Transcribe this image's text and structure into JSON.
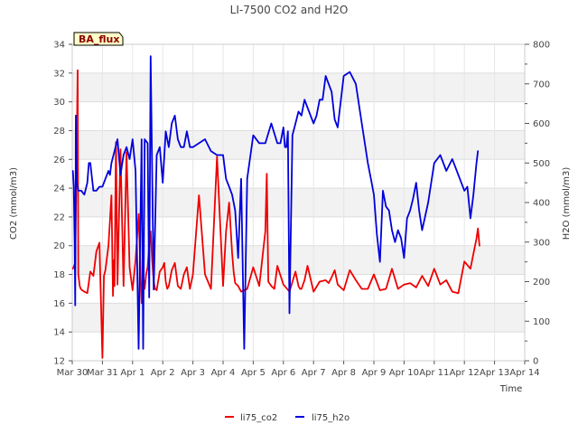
{
  "chart_data": {
    "type": "line",
    "title": "LI-7500 CO2 and H2O",
    "badge": "BA_flux",
    "xlabel": "Time",
    "ylabel_left": "CO2 (mmol/m3)",
    "ylabel_right": "H2O (mmol/m3)",
    "x_tick_labels": [
      "Mar 30",
      "Mar 31",
      "Apr 1",
      "Apr 2",
      "Apr 3",
      "Apr 4",
      "Apr 5",
      "Apr 6",
      "Apr 7",
      "Apr 8",
      "Apr 9",
      "Apr 10",
      "Apr 11",
      "Apr 12",
      "Apr 13",
      "Apr 14"
    ],
    "xlim": [
      0,
      15
    ],
    "ylim_left": [
      12,
      34
    ],
    "ylim_right": [
      0,
      800
    ],
    "yticks_left": [
      12,
      14,
      16,
      18,
      20,
      22,
      24,
      26,
      28,
      30,
      32,
      34
    ],
    "yticks_right": [
      0,
      100,
      200,
      300,
      400,
      500,
      600,
      700,
      800
    ],
    "series": [
      {
        "name": "li75_co2",
        "axis": "left",
        "color": "#ee0000",
        "x": [
          0.02,
          0.1,
          0.18,
          0.2,
          0.25,
          0.28,
          0.33,
          0.4,
          0.5,
          0.6,
          0.7,
          0.8,
          0.9,
          1.0,
          1.05,
          1.1,
          1.2,
          1.3,
          1.35,
          1.38,
          1.4,
          1.45,
          1.5,
          1.6,
          1.7,
          1.8,
          1.9,
          2.0,
          2.1,
          2.2,
          2.3,
          2.35,
          2.4,
          2.45,
          2.5,
          2.55,
          2.6,
          2.65,
          2.7,
          2.75,
          2.8,
          2.9,
          3.0,
          3.05,
          3.1,
          3.15,
          3.2,
          3.3,
          3.4,
          3.5,
          3.6,
          3.7,
          3.8,
          3.9,
          4.0,
          4.2,
          4.4,
          4.6,
          4.8,
          5.0,
          5.1,
          5.2,
          5.3,
          5.35,
          5.4,
          5.5,
          5.6,
          5.8,
          6.0,
          6.2,
          6.4,
          6.45,
          6.5,
          6.6,
          6.7,
          6.8,
          7.0,
          7.2,
          7.4,
          7.5,
          7.55,
          7.6,
          7.7,
          7.8,
          8.0,
          8.2,
          8.4,
          8.5,
          8.6,
          8.7,
          8.8,
          9.0,
          9.2,
          9.4,
          9.6,
          9.8,
          10.0,
          10.2,
          10.4,
          10.6,
          10.8,
          11.0,
          11.2,
          11.4,
          11.6,
          11.8,
          12.0,
          12.2,
          12.4,
          12.6,
          12.8,
          13.0,
          13.2,
          13.4,
          13.45,
          13.5
        ],
        "values": [
          18.4,
          18.8,
          32.2,
          18.0,
          17.2,
          17.0,
          16.9,
          16.8,
          16.7,
          18.2,
          17.9,
          19.6,
          20.2,
          12.2,
          17.9,
          18.3,
          20.0,
          23.5,
          16.5,
          19.0,
          17.2,
          27.2,
          17.3,
          26.7,
          17.2,
          26.5,
          18.5,
          16.9,
          19.0,
          22.2,
          16.0,
          18.0,
          17.0,
          18.0,
          18.5,
          20.0,
          21.0,
          19.0,
          17.5,
          17.0,
          16.9,
          18.2,
          18.5,
          18.8,
          17.5,
          17.0,
          17.2,
          18.3,
          18.8,
          17.2,
          17.0,
          18.0,
          18.5,
          17.0,
          18.0,
          23.5,
          18.0,
          17.0,
          26.2,
          17.2,
          21.0,
          23.0,
          19.5,
          18.2,
          17.4,
          17.2,
          16.8,
          17.0,
          18.5,
          17.2,
          21.0,
          25.0,
          17.5,
          17.2,
          17.0,
          18.6,
          17.3,
          16.8,
          18.2,
          17.2,
          17.0,
          17.0,
          17.6,
          18.6,
          16.8,
          17.5,
          17.6,
          17.4,
          17.8,
          18.3,
          17.3,
          16.9,
          18.3,
          17.6,
          17.0,
          17.0,
          18.0,
          16.9,
          17.0,
          18.4,
          17.0,
          17.3,
          17.4,
          17.1,
          17.9,
          17.2,
          18.4,
          17.3,
          17.6,
          16.8,
          16.7,
          18.9,
          18.4,
          20.5,
          21.2,
          20.0
        ]
      },
      {
        "name": "li75_h2o",
        "axis": "right",
        "color": "#0000dd",
        "x": [
          0.02,
          0.05,
          0.08,
          0.1,
          0.12,
          0.15,
          0.2,
          0.3,
          0.4,
          0.5,
          0.55,
          0.6,
          0.7,
          0.8,
          0.9,
          1.0,
          1.1,
          1.2,
          1.25,
          1.3,
          1.4,
          1.5,
          1.6,
          1.7,
          1.8,
          1.9,
          2.0,
          2.1,
          2.2,
          2.3,
          2.35,
          2.4,
          2.5,
          2.55,
          2.6,
          2.7,
          2.8,
          2.9,
          3.0,
          3.1,
          3.2,
          3.3,
          3.4,
          3.5,
          3.6,
          3.7,
          3.8,
          3.9,
          4.0,
          4.2,
          4.4,
          4.6,
          4.8,
          5.0,
          5.1,
          5.2,
          5.3,
          5.4,
          5.5,
          5.6,
          5.7,
          5.8,
          6.0,
          6.2,
          6.4,
          6.6,
          6.8,
          6.9,
          7.0,
          7.05,
          7.1,
          7.15,
          7.2,
          7.3,
          7.4,
          7.5,
          7.6,
          7.7,
          7.8,
          8.0,
          8.1,
          8.2,
          8.3,
          8.4,
          8.5,
          8.6,
          8.7,
          8.8,
          9.0,
          9.2,
          9.4,
          9.6,
          9.8,
          9.9,
          10.0,
          10.1,
          10.2,
          10.3,
          10.4,
          10.5,
          10.6,
          10.7,
          10.8,
          10.9,
          11.0,
          11.1,
          11.2,
          11.3,
          11.4,
          11.5,
          11.6,
          11.8,
          12.0,
          12.2,
          12.4,
          12.6,
          12.8,
          13.0,
          13.1,
          13.2,
          13.3,
          13.4,
          13.45
        ],
        "values": [
          480,
          440,
          290,
          140,
          620,
          450,
          430,
          430,
          420,
          450,
          500,
          500,
          430,
          430,
          440,
          440,
          460,
          480,
          470,
          500,
          530,
          560,
          470,
          520,
          540,
          510,
          560,
          480,
          30,
          560,
          30,
          560,
          550,
          160,
          770,
          180,
          520,
          540,
          450,
          580,
          540,
          600,
          620,
          560,
          540,
          540,
          580,
          540,
          540,
          550,
          560,
          530,
          520,
          520,
          460,
          440,
          420,
          380,
          260,
          460,
          30,
          460,
          570,
          550,
          550,
          600,
          550,
          550,
          590,
          540,
          540,
          580,
          120,
          570,
          600,
          630,
          620,
          660,
          640,
          600,
          620,
          660,
          660,
          720,
          700,
          680,
          610,
          590,
          720,
          730,
          700,
          600,
          500,
          460,
          420,
          320,
          250,
          430,
          390,
          380,
          330,
          300,
          330,
          310,
          260,
          360,
          380,
          410,
          450,
          380,
          330,
          400,
          500,
          520,
          480,
          510,
          470,
          430,
          440,
          360,
          420,
          500,
          530
        ]
      }
    ],
    "legend_position": "bottom-center"
  }
}
